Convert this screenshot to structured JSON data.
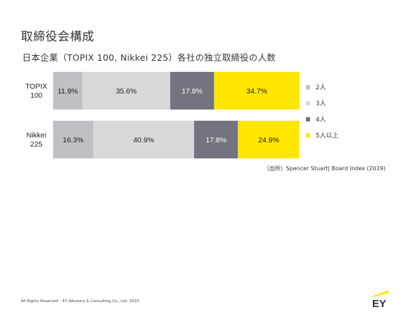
{
  "title": "取締役会構成",
  "subtitle": "日本企業（TOPIX 100, Nikkei 225）各社の独立取締役の人数",
  "source": "（出所）Spencer Stuart| Board Index (2019)",
  "footer": "All Rights Reserved – EY Advisory & Consulting Co., Ltd. 2020",
  "logo_text": "EY",
  "colors": {
    "two": "#BFBFC6",
    "three": "#D9D9D9",
    "four": "#747480",
    "five_plus": "#FFE600",
    "logo_accent": "#FFE600"
  },
  "chart_data": {
    "type": "bar",
    "orientation": "horizontal",
    "stacked": true,
    "normalized_percent": true,
    "categories": [
      [
        "TOPIX",
        "100"
      ],
      [
        "Nikkei",
        "225"
      ]
    ],
    "series": [
      {
        "name": "2人",
        "values": [
          11.9,
          16.3
        ],
        "labels": [
          "11.9%",
          "16.3%"
        ],
        "color": "#BFBFC6"
      },
      {
        "name": "3人",
        "values": [
          35.6,
          40.9
        ],
        "labels": [
          "35.6%",
          "40.9%"
        ],
        "color": "#D9D9D9"
      },
      {
        "name": "4人",
        "values": [
          17.8,
          17.8
        ],
        "labels": [
          "17.8%",
          "17.8%"
        ],
        "color": "#747480"
      },
      {
        "name": "5人以上",
        "values": [
          34.7,
          24.9
        ],
        "labels": [
          "34.7%",
          "24.9%"
        ],
        "color": "#FFE600"
      }
    ],
    "legend_position": "right",
    "grid": false
  }
}
